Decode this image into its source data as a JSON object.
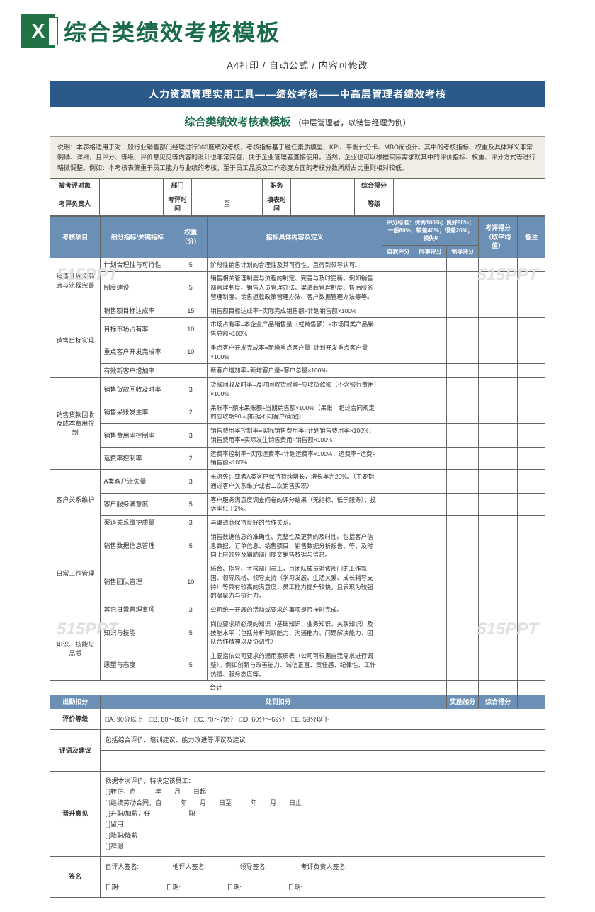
{
  "header": {
    "title": "综合类绩效考核模板",
    "sub": "A4打印 / 自动公式 / 内容可修改"
  },
  "watermark": "515PPT",
  "banner": "人力资源管理实用工具——绩效考核——中高层管理者绩效考核",
  "docTitle": "综合类绩效考核表模板",
  "docTitleSub": "（中层管理者，以销售经理为例）",
  "desc": "说明：本表格适用于对一般行业销售部门经理进行360度绩效考核，考核指标基于胜任素质模型、KPI、平衡计分卡、MBO而设计。其中的考核指标、权重及具体释义非常明确、详细，且评分、等级、评价意见见等内容的设计也非常完善，便于企业管理者直接使用。当然，企业也可以根据实际需求就其中的评价指标、权重、评分方式等进行略微调整。例如：本考核表偏重于员工能力与业绩的考核，至于员工品质及工作态度方面的考核分数所所占比重则相对较低。",
  "meta": {
    "target": "被考评对象",
    "dept": "部门",
    "job": "职务",
    "total": "综合得分",
    "owner": "考评负责人",
    "period": "考评时间",
    "to": "至",
    "fillTime": "填表时间",
    "grade": "等级"
  },
  "cols": {
    "item": "考核项目",
    "sub": "细分指标/关键指标",
    "weight": "权重（分）",
    "def": "指标具体内容及定义",
    "scoreStd": "评分标准：优秀100%；良好80%；一般60%；较差40%；很差20%；损失0",
    "self": "自我评分",
    "peer": "同事评分",
    "lead": "领导评分",
    "final": "考评得分（取平均值）",
    "note": "备注"
  },
  "groups": [
    {
      "name": "销售计划及制度与流程完善",
      "rows": [
        {
          "k": "计划合理性与可行性",
          "w": "5",
          "d": "阶段性销售计划的合理性及其可行性，且得到领导认可。"
        },
        {
          "k": "制度建设",
          "w": "5",
          "d": "销售相关管理制度与流程的制定、完善与及时更新。例如销售部管理制度、销售人员管理办法、渠道商管理制度、售后服务管理制度、销售返款政策管理办法、客户数据管理办法等等。"
        }
      ]
    },
    {
      "name": "销售目标实现",
      "rows": [
        {
          "k": "销售额目标达成率",
          "w": "15",
          "d": "销售额目标达成率=实际完成销售额÷计划销售额×100%"
        },
        {
          "k": "目标市场占有率",
          "w": "10",
          "d": "市场占有率=本企业产品销售量（或销售额）÷市场同类产品销售总额×100%"
        },
        {
          "k": "重点客户开发完成率",
          "w": "10",
          "d": "重点客户开发完成率=新增重点客户量÷计划开发重点客户量×100%"
        },
        {
          "k": "有效新客户增加率",
          "w": "",
          "d": "新客户增加率=新增客户量÷客户总量×100%"
        }
      ]
    },
    {
      "name": "销售货款回收及成本费用控制",
      "rows": [
        {
          "k": "销售货款回收及时率",
          "w": "3",
          "d": "货款回收及时率=及时回收货款额÷应收货款额（不含银行费用）×100%"
        },
        {
          "k": "销售呆账发生率",
          "w": "2",
          "d": "呆账率=期末呆账额÷当期销售额×100%（呆账：超过合同规定的应收期90天[根据不同客户确定]）"
        },
        {
          "k": "销售费用率控制率",
          "w": "3",
          "d": "销售费用率控制率=实际销售费用率÷计划销售费用率×100%；销售费用率=实际发生销售费用÷销售额×100%"
        },
        {
          "k": "运费率控制率",
          "w": "2",
          "d": "运费率控制率=实际运费率÷计划运费率×100%；运费率=运费÷销售额×100%"
        }
      ]
    },
    {
      "name": "客户关系维护",
      "rows": [
        {
          "k": "A类客户流失量",
          "w": "3",
          "d": "无流失；或者A类客户保持持续增长，增长率为20%。（主要指通过客户关系维护或者二次销售实现）"
        },
        {
          "k": "客户服务满意度",
          "w": "5",
          "d": "客户服务满意度调查问卷的评分结果（无指标、低于服务）；投诉率低于2%。"
        },
        {
          "k": "渠道关系维护质量",
          "w": "3",
          "d": "与渠道商保持良好的合作关系。"
        }
      ]
    },
    {
      "name": "日常工作管理",
      "rows": [
        {
          "k": "销售数据信息管理",
          "w": "5",
          "d": "销售数据信息的准确性、完整性及更新的及时性。包括客户信息数据、订单信息、销售额目、销售数据分析报告、等，及时向上层领导及辅助部门提交销售数据与信息。"
        },
        {
          "k": "销售团队管理",
          "w": "10",
          "d": "培育、指导、考核部门员工，且团队成员对该部门的工作氛围、领导风格、领导支持（学习发展、生活关爱、成长辅导支持）等具有较高的满意度；员工能力提升较快，且表现为较强的凝聚力与执行力。"
        },
        {
          "k": "其它日常管理事项",
          "w": "3",
          "d": "公司统一开展的活动或要求的事项是否按时完成。"
        }
      ]
    },
    {
      "name": "知识、技能与品质",
      "rows": [
        {
          "k": "知识与技能",
          "w": "5",
          "d": "岗位要求所必须的知识（基础知识、业务知识、关联知识）及技能水平（包括分析判断能力、沟通能力、问题解决能力、团队合作精神以及协调性）"
        },
        {
          "k": "愿望与态度",
          "w": "5",
          "d": "主要指依公司要求的通用素质表（公司可根据自我需求进行调整）。例如创新与改善能力、诚信正直、责任感、纪律性、工作热情、服务态度等。"
        }
      ]
    }
  ],
  "sum": "合计",
  "footer": {
    "att": "出勤扣分",
    "pen": "处罚扣分",
    "award": "奖励加分",
    "total": "综合得分"
  },
  "grade": {
    "label": "评价等级",
    "opts": "□A. 90分以上　□B. 80～89分　□C. 70～79分　□D. 60分～69分　□E. 59分以下",
    "note": "包括综合评价、培训建议、能力改进等评议及建议"
  },
  "advice": "评语及建议",
  "promo": {
    "label": "晋升意见",
    "body": "依据本次评价，特决定该员工：\n[ ]转正，自　　　年　　月　　日起\n[ ]继续劳动合同，自　　　年　　月　　日至　　　年　　月　　日止\n[ ]升职/加薪，任　　　　　　职\n[ ]留用\n[ ]降职/降薪\n[ ]辞退"
  },
  "sign": {
    "label": "签名",
    "s1": "自评人签名:",
    "s2": "他评人签名:",
    "s3": "领导签名:",
    "s4": "考评负责人签名:",
    "date": "日期:"
  },
  "colors": {
    "banner": "#2b5a8a",
    "th": "#6b8fb5",
    "title": "#1a6b4a",
    "desc": "#f0ede4"
  }
}
